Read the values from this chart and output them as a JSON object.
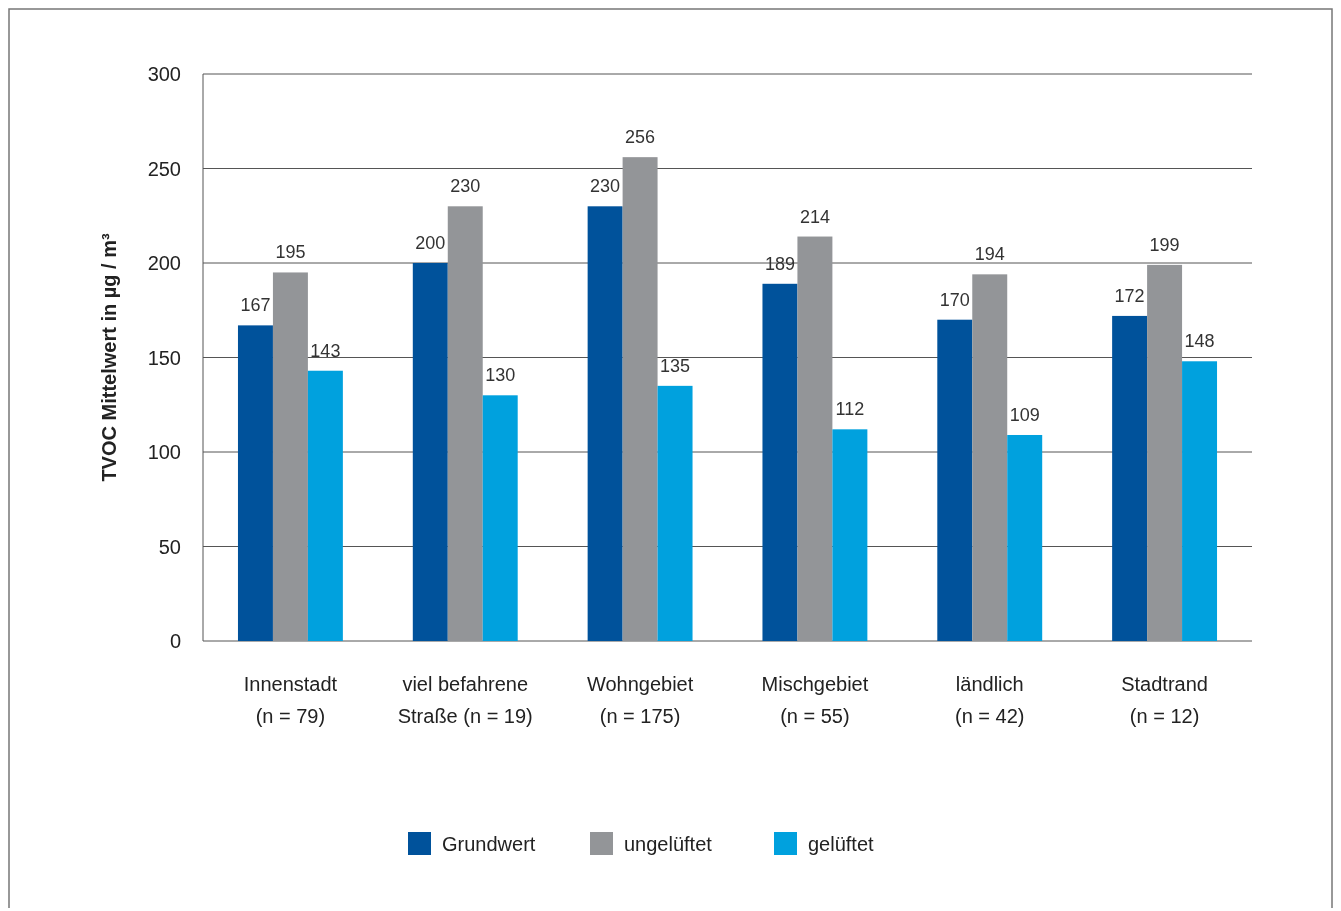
{
  "chart_data": {
    "type": "bar",
    "ylabel": "TVOC Mittelwert in µg / m³",
    "categories": [
      "Innenstadt\n(n = 79)",
      "viel befahrene\nStraße (n = 19)",
      "Wohngebiet\n(n = 175)",
      "Mischgebiet\n(n = 55)",
      "ländlich\n(n = 42)",
      "Stadtrand\n(n = 12)"
    ],
    "series": [
      {
        "name": "Grundwert",
        "color": "#00529b",
        "values": [
          167,
          200,
          230,
          189,
          170,
          172
        ]
      },
      {
        "name": "ungelüftet",
        "color": "#939598",
        "values": [
          195,
          230,
          256,
          214,
          194,
          199
        ]
      },
      {
        "name": "gelüftet",
        "color": "#00a1de",
        "values": [
          143,
          130,
          135,
          112,
          109,
          148
        ]
      }
    ],
    "ylim": [
      0,
      300
    ],
    "yticks": [
      0,
      50,
      100,
      150,
      200,
      250,
      300
    ],
    "grid": "y",
    "legend": "bottom",
    "data_labels": true
  }
}
